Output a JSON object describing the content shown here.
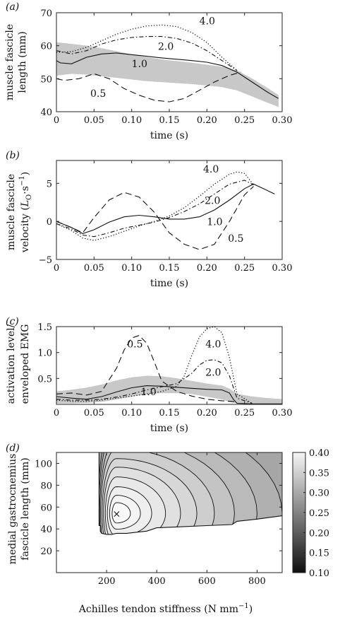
{
  "chart_data": [
    {
      "type": "line",
      "panel_label": "(a)",
      "xlabel": "time (s)",
      "ylabel_lines": [
        "muscle fascicle",
        "length (mm)"
      ],
      "xlim": [
        0,
        0.3
      ],
      "ylim": [
        40,
        70
      ],
      "xticks": [
        0,
        0.05,
        0.1,
        0.15,
        0.2,
        0.25,
        0.3
      ],
      "xtick_labels": [
        "0",
        "0.05",
        "0.10",
        "0.15",
        "0.20",
        "0.25",
        "0.30"
      ],
      "yticks": [
        40,
        50,
        60,
        70
      ],
      "ytick_labels": [
        "40",
        "50",
        "60",
        "70"
      ],
      "band": {
        "x": [
          0,
          0.02,
          0.04,
          0.06,
          0.08,
          0.1,
          0.12,
          0.14,
          0.16,
          0.18,
          0.2,
          0.22,
          0.24,
          0.26,
          0.28,
          0.295
        ],
        "lower": [
          51,
          51.5,
          51.3,
          50.8,
          50.3,
          49.8,
          49.3,
          49.0,
          48.7,
          48.4,
          48.0,
          47.5,
          46.5,
          44.7,
          42.8,
          41.5
        ],
        "upper": [
          61,
          60.5,
          60,
          59.2,
          58.3,
          57.3,
          56.5,
          55.8,
          55.3,
          54.8,
          54.2,
          53.6,
          52.5,
          50.0,
          47.2,
          45.0
        ]
      },
      "series": [
        {
          "name": "0.5",
          "style": "dashed",
          "x": [
            0,
            0.01,
            0.03,
            0.05,
            0.07,
            0.09,
            0.11,
            0.13,
            0.15,
            0.17,
            0.19,
            0.21,
            0.23,
            0.245
          ],
          "y": [
            50,
            49.5,
            50,
            51.5,
            50,
            47,
            45,
            43.5,
            43,
            44,
            46.5,
            49,
            51,
            52
          ]
        },
        {
          "name": "1.0",
          "style": "solid",
          "x": [
            0,
            0.005,
            0.02,
            0.04,
            0.06,
            0.08,
            0.1,
            0.12,
            0.14,
            0.16,
            0.18,
            0.2,
            0.22,
            0.24,
            0.26,
            0.28,
            0.295
          ],
          "y": [
            55.5,
            54.8,
            54.5,
            56.5,
            57.5,
            57.8,
            57.3,
            56.8,
            56.3,
            55.9,
            55.5,
            55,
            54,
            52,
            49,
            46,
            44
          ]
        },
        {
          "name": "2.0",
          "style": "dashdot",
          "x": [
            0,
            0.02,
            0.04,
            0.06,
            0.08,
            0.1,
            0.12,
            0.14,
            0.16,
            0.18,
            0.2,
            0.22,
            0.24
          ],
          "y": [
            58.5,
            57.5,
            58.5,
            60.5,
            61.8,
            62.5,
            62.8,
            62.8,
            62.2,
            60.8,
            58.5,
            55.5,
            52.5
          ]
        },
        {
          "name": "4.0",
          "style": "dotted",
          "x": [
            0,
            0.02,
            0.04,
            0.06,
            0.08,
            0.1,
            0.12,
            0.14,
            0.16,
            0.18,
            0.2,
            0.22,
            0.24
          ],
          "y": [
            58,
            58.2,
            59.5,
            61.5,
            63.5,
            65,
            66,
            66.3,
            65.8,
            64,
            61,
            56.5,
            52.5
          ]
        }
      ],
      "labels": [
        {
          "text": "4.0",
          "x": 0.19,
          "y": 66.5
        },
        {
          "text": "2.0",
          "x": 0.135,
          "y": 58.8
        },
        {
          "text": "1.0",
          "x": 0.1,
          "y": 53.5
        },
        {
          "text": "0.5",
          "x": 0.045,
          "y": 44.5
        }
      ]
    },
    {
      "type": "line",
      "panel_label": "(b)",
      "xlabel": "time (s)",
      "ylabel_lines": [
        "muscle fascicle",
        "velocity (L₀·s⁻¹)"
      ],
      "ylabel_parts": [
        "velocity (",
        "L",
        "O",
        "·s",
        "−1",
        ")"
      ],
      "xlim": [
        0,
        0.3
      ],
      "ylim": [
        -5,
        8
      ],
      "xticks": [
        0,
        0.05,
        0.1,
        0.15,
        0.2,
        0.25,
        0.3
      ],
      "xtick_labels": [
        "0",
        "0.05",
        "0.10",
        "0.15",
        "0.20",
        "0.25",
        "0.30"
      ],
      "yticks": [
        -5,
        0,
        5
      ],
      "ytick_labels": [
        "−5",
        "0",
        "5"
      ],
      "series": [
        {
          "name": "0.5",
          "style": "dashed",
          "x": [
            0,
            0.02,
            0.035,
            0.05,
            0.07,
            0.09,
            0.11,
            0.13,
            0.15,
            0.17,
            0.19,
            0.21,
            0.23,
            0.25,
            0.262
          ],
          "y": [
            0,
            -0.8,
            -1.5,
            0.5,
            2.8,
            3.8,
            3.2,
            1.2,
            -1.5,
            -3.0,
            -3.7,
            -3.0,
            0.0,
            3.5,
            4.6
          ]
        },
        {
          "name": "1.0",
          "style": "solid",
          "x": [
            0,
            0.02,
            0.035,
            0.05,
            0.07,
            0.09,
            0.11,
            0.13,
            0.15,
            0.17,
            0.19,
            0.21,
            0.23,
            0.25,
            0.262,
            0.275,
            0.29
          ],
          "y": [
            0,
            -0.8,
            -1.6,
            -1.1,
            -0.1,
            0.6,
            0.8,
            0.6,
            0.3,
            0.3,
            0.6,
            1.5,
            2.8,
            4.3,
            4.9,
            4.3,
            3.6
          ]
        },
        {
          "name": "2.0",
          "style": "dashdot",
          "x": [
            0,
            0.02,
            0.035,
            0.05,
            0.07,
            0.09,
            0.11,
            0.13,
            0.15,
            0.17,
            0.19,
            0.21,
            0.23,
            0.25,
            0.262
          ],
          "y": [
            -0.3,
            -1.0,
            -1.8,
            -2.0,
            -1.5,
            -0.9,
            -0.5,
            -0.1,
            0.5,
            1.3,
            2.3,
            3.6,
            4.9,
            5.4,
            4.8
          ]
        },
        {
          "name": "4.0",
          "style": "dotted",
          "x": [
            0,
            0.02,
            0.035,
            0.05,
            0.07,
            0.09,
            0.11,
            0.13,
            0.15,
            0.17,
            0.19,
            0.21,
            0.23,
            0.24,
            0.25,
            0.262
          ],
          "y": [
            -0.3,
            -1.2,
            -2.2,
            -2.5,
            -2.0,
            -1.3,
            -0.6,
            0.0,
            0.7,
            1.8,
            3.3,
            4.9,
            6.2,
            6.5,
            6.3,
            4.8
          ]
        }
      ],
      "labels": [
        {
          "text": "4.0",
          "x": 0.195,
          "y": 6.4
        },
        {
          "text": "2.0",
          "x": 0.197,
          "y": 2.3
        },
        {
          "text": "1.0",
          "x": 0.2,
          "y": -0.5
        },
        {
          "text": "0.5",
          "x": 0.228,
          "y": -2.7
        }
      ]
    },
    {
      "type": "line",
      "panel_label": "(c)",
      "xlabel": "time (s)",
      "ylabel_lines": [
        "activation level/",
        "enveloped EMG"
      ],
      "xlim": [
        0,
        0.3
      ],
      "ylim": [
        0,
        1.5
      ],
      "xticks": [
        0,
        0.05,
        0.1,
        0.15,
        0.2,
        0.25,
        0.3
      ],
      "xtick_labels": [
        "0",
        "0.05",
        "0.10",
        "0.15",
        "0.20",
        "0.25",
        "0.30"
      ],
      "yticks": [
        0.5,
        1.0,
        1.5
      ],
      "ytick_labels": [
        "0.5",
        "1.0",
        "1.5"
      ],
      "band": {
        "x": [
          0,
          0.02,
          0.04,
          0.06,
          0.08,
          0.1,
          0.12,
          0.14,
          0.16,
          0.18,
          0.2,
          0.22,
          0.23,
          0.24,
          0.26,
          0.28,
          0.3
        ],
        "lower": [
          0.02,
          0.02,
          0.03,
          0.05,
          0.1,
          0.15,
          0.2,
          0.22,
          0.22,
          0.2,
          0.15,
          0.1,
          0.05,
          0.02,
          0.01,
          0.01,
          0.01
        ],
        "upper": [
          0.25,
          0.28,
          0.32,
          0.38,
          0.46,
          0.52,
          0.55,
          0.54,
          0.5,
          0.45,
          0.4,
          0.36,
          0.3,
          0.2,
          0.15,
          0.12,
          0.1
        ]
      },
      "series": [
        {
          "name": "0.5",
          "style": "dashed",
          "x": [
            0,
            0.02,
            0.04,
            0.06,
            0.08,
            0.09,
            0.1,
            0.11,
            0.12,
            0.13,
            0.14,
            0.16,
            0.18,
            0.2,
            0.22,
            0.24
          ],
          "y": [
            0.2,
            0.22,
            0.18,
            0.25,
            0.7,
            1.05,
            1.28,
            1.33,
            1.18,
            0.82,
            0.45,
            0.25,
            0.16,
            0.1,
            0.07,
            0.05
          ]
        },
        {
          "name": "1.0",
          "style": "solid",
          "x": [
            0,
            0.02,
            0.04,
            0.06,
            0.08,
            0.1,
            0.12,
            0.14,
            0.16,
            0.18,
            0.2,
            0.22,
            0.23,
            0.235,
            0.24,
            0.26,
            0.3
          ],
          "y": [
            0.15,
            0.12,
            0.1,
            0.15,
            0.24,
            0.32,
            0.36,
            0.35,
            0.33,
            0.31,
            0.29,
            0.28,
            0.22,
            0.1,
            0.02,
            0.01,
            0.01
          ]
        },
        {
          "name": "2.0",
          "style": "dashdot",
          "x": [
            0,
            0.02,
            0.04,
            0.06,
            0.08,
            0.1,
            0.12,
            0.14,
            0.16,
            0.18,
            0.19,
            0.2,
            0.21,
            0.22,
            0.23,
            0.24,
            0.26
          ],
          "y": [
            0.1,
            0.08,
            0.08,
            0.1,
            0.14,
            0.2,
            0.28,
            0.34,
            0.4,
            0.6,
            0.76,
            0.85,
            0.86,
            0.8,
            0.55,
            0.12,
            0.02
          ]
        },
        {
          "name": "4.0",
          "style": "dotted",
          "x": [
            0,
            0.02,
            0.04,
            0.06,
            0.08,
            0.1,
            0.12,
            0.14,
            0.16,
            0.17,
            0.18,
            0.19,
            0.2,
            0.21,
            0.22,
            0.23,
            0.24,
            0.26
          ],
          "y": [
            0.08,
            0.06,
            0.06,
            0.08,
            0.12,
            0.16,
            0.2,
            0.25,
            0.35,
            0.55,
            0.95,
            1.3,
            1.46,
            1.5,
            1.38,
            0.9,
            0.2,
            0.02
          ]
        }
      ],
      "labels": [
        {
          "text": "4.0",
          "x": 0.198,
          "y": 1.1
        },
        {
          "text": "2.0",
          "x": 0.198,
          "y": 0.55
        },
        {
          "text": "1.0",
          "x": 0.112,
          "y": 0.18
        },
        {
          "text": "0.5",
          "x": 0.094,
          "y": 1.1
        }
      ]
    },
    {
      "type": "heatmap",
      "panel_label": "(d)",
      "xlabel": "Achilles tendon stiffness (N mm⁻¹)",
      "xlabel_parts": [
        "Achilles tendon stiffness (N mm",
        "−1",
        ")"
      ],
      "ylabel_lines": [
        "medial gastrocnemius",
        "fascicle length (mm)"
      ],
      "xlim": [
        0,
        900
      ],
      "ylim": [
        0,
        110
      ],
      "xticks": [
        200,
        400,
        600,
        800
      ],
      "xtick_labels": [
        "200",
        "400",
        "600",
        "800"
      ],
      "yticks": [
        20,
        40,
        60,
        80,
        100
      ],
      "ytick_labels": [
        "20",
        "40",
        "60",
        "80",
        "100"
      ],
      "optimum": {
        "x": 240,
        "y": 54,
        "marker": "×"
      },
      "colorbar": {
        "min": 0.1,
        "max": 0.4,
        "ticks": [
          0.1,
          0.15,
          0.2,
          0.25,
          0.3,
          0.35,
          0.4
        ],
        "tick_labels": [
          "0.10",
          "0.15",
          "0.20",
          "0.25",
          "0.30",
          "0.35",
          "0.40"
        ]
      },
      "contour_levels": [
        0.39,
        0.38,
        0.37,
        0.36,
        0.35,
        0.34,
        0.33,
        0.32,
        0.31,
        0.3
      ],
      "domain_boundary": {
        "x": [
          170,
          170,
          175,
          175,
          180,
          200,
          220,
          240,
          260,
          280,
          320,
          360,
          400,
          500,
          600,
          700,
          720,
          800,
          900
        ],
        "y": [
          110,
          43,
          43,
          38,
          36,
          35,
          35,
          36,
          36,
          36,
          37,
          38,
          41,
          42,
          43,
          44,
          47,
          49,
          52
        ]
      }
    }
  ]
}
